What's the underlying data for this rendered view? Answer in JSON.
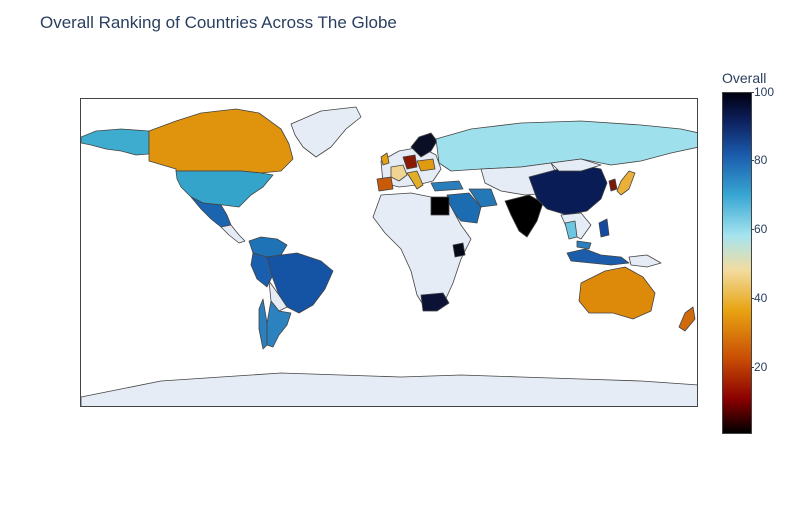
{
  "title": "Overall Ranking of Countries Across The Globe",
  "colorbar": {
    "title": "Overall",
    "ticks": [
      "100",
      "80",
      "60",
      "40",
      "20"
    ]
  },
  "colors": {
    "no_data": "#e5ecf6",
    "border": "#444444",
    "frame": "#444444"
  },
  "chart_data": {
    "type": "choropleth",
    "scope": "world",
    "color_scale": "reversed blackbody-like (low dark red, mid yellow/light cyan, high navy/black)",
    "colorbar_range": [
      0,
      100
    ],
    "countries": [
      {
        "name": "Canada",
        "value": 35
      },
      {
        "name": "United States",
        "value": 68
      },
      {
        "name": "Mexico",
        "value": 80
      },
      {
        "name": "Brazil",
        "value": 83
      },
      {
        "name": "Peru",
        "value": 80
      },
      {
        "name": "Colombia",
        "value": 75
      },
      {
        "name": "Argentina",
        "value": 72
      },
      {
        "name": "Chile",
        "value": 74
      },
      {
        "name": "Russia",
        "value": 60
      },
      {
        "name": "China",
        "value": 92
      },
      {
        "name": "India",
        "value": 99
      },
      {
        "name": "Egypt",
        "value": 99
      },
      {
        "name": "Saudi Arabia",
        "value": 82
      },
      {
        "name": "Iran",
        "value": 76
      },
      {
        "name": "Turkey",
        "value": 75
      },
      {
        "name": "Spain",
        "value": 25
      },
      {
        "name": "France",
        "value": 45
      },
      {
        "name": "Germany",
        "value": 15
      },
      {
        "name": "Italy",
        "value": 38
      },
      {
        "name": "Scandinavia",
        "value": 97
      },
      {
        "name": "United Kingdom",
        "value": 38
      },
      {
        "name": "Kenya",
        "value": 97
      },
      {
        "name": "South Africa",
        "value": 95
      },
      {
        "name": "Australia",
        "value": 30
      },
      {
        "name": "New Zealand",
        "value": 25
      },
      {
        "name": "Japan",
        "value": 42
      },
      {
        "name": "South Korea",
        "value": 12
      },
      {
        "name": "Indonesia",
        "value": 82
      },
      {
        "name": "Philippines",
        "value": 85
      },
      {
        "name": "Thailand",
        "value": 65
      },
      {
        "name": "Malaysia",
        "value": 75
      }
    ]
  }
}
